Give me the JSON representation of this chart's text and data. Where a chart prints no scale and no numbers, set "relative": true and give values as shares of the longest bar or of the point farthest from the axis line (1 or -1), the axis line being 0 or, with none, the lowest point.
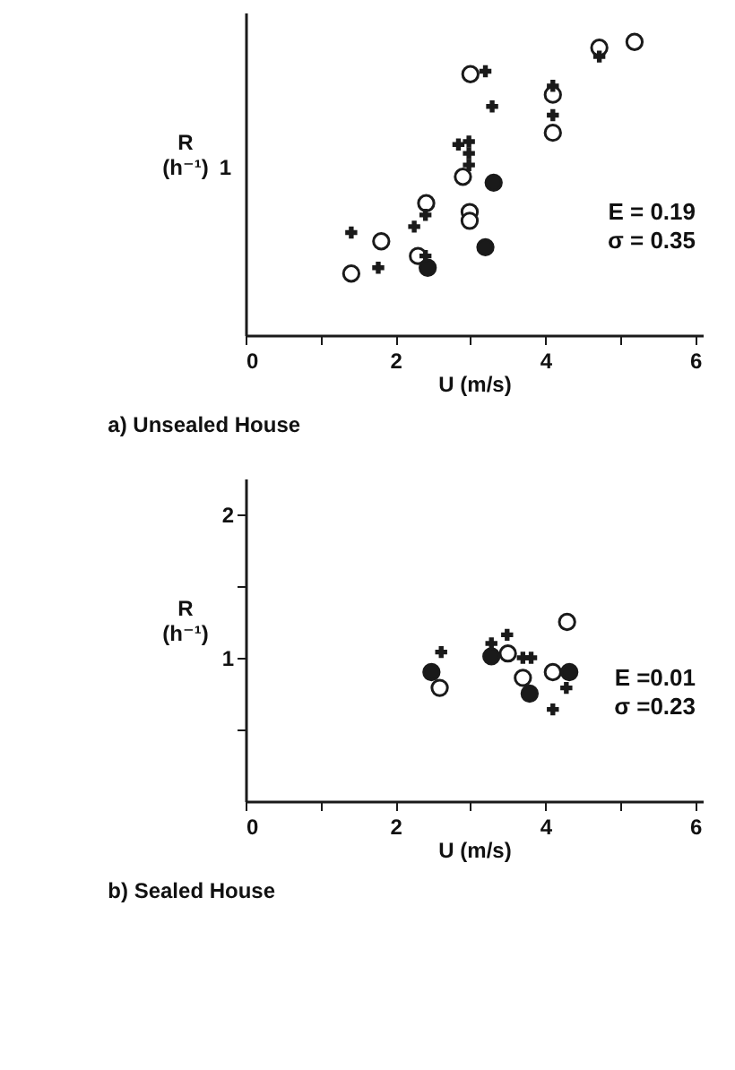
{
  "chart_data": [
    {
      "type": "scatter",
      "title": "a) Unsealed House",
      "xlabel": "U (m/s)",
      "ylabel": "R (h⁻¹)",
      "annotations": [
        "1",
        "E = 0.19",
        "σ = 0.35"
      ],
      "relative": true,
      "xlim": [
        0,
        6.1
      ],
      "xticks": [
        0,
        {
          "value": 1,
          "label": null
        },
        2,
        {
          "value": 3,
          "label": null
        },
        4,
        {
          "value": 5,
          "label": null
        },
        6
      ],
      "grid": false,
      "series": [
        {
          "color": "#ffffff",
          "marker": "circle",
          "x": [
            1.41,
            1.81,
            2.3,
            2.41,
            2.9,
            2.99,
            2.99,
            3.0,
            4.1,
            4.1,
            4.72,
            5.19
          ],
          "values": [
            0.21,
            0.32,
            0.27,
            0.45,
            0.54,
            0.42,
            0.39,
            0.89,
            0.82,
            0.69,
            0.98,
            1
          ]
        },
        {
          "color": "#1a1a1a",
          "marker": "circle",
          "x": [
            2.43,
            3.31,
            3.2
          ],
          "values": [
            0.23,
            0.52,
            0.3
          ]
        },
        {
          "color": "#1a1a1a",
          "marker": "cross",
          "x": [
            1.41,
            1.77,
            2.25,
            2.4,
            2.4,
            2.84,
            2.98,
            2.98,
            2.98,
            3.2,
            3.29,
            4.1,
            4.1,
            4.72
          ],
          "values": [
            0.35,
            0.23,
            0.37,
            0.41,
            0.27,
            0.65,
            0.66,
            0.62,
            0.58,
            0.9,
            0.78,
            0.75,
            0.85,
            0.95
          ]
        }
      ]
    },
    {
      "type": "scatter",
      "title": "b) Sealed House",
      "xlabel": "U (m/s)",
      "ylabel": "R (h⁻¹)",
      "annotations": [
        "E =0.01",
        "σ =0.23"
      ],
      "xlim": [
        0,
        6.1
      ],
      "ylim": [
        0,
        2.25
      ],
      "xticks": [
        0,
        {
          "value": 1,
          "label": null
        },
        2,
        {
          "value": 3,
          "label": null
        },
        4,
        {
          "value": 5,
          "label": null
        },
        6
      ],
      "yticks": [
        {
          "value": 0.5,
          "label": null
        },
        1,
        {
          "value": 1.5,
          "label": null
        },
        2
      ],
      "grid": false,
      "series": [
        {
          "color": "#ffffff",
          "marker": "circle",
          "x": [
            2.59,
            3.5,
            3.7,
            4.1,
            4.29
          ],
          "values": [
            0.79,
            1.03,
            0.86,
            0.9,
            1.25
          ]
        },
        {
          "color": "#1a1a1a",
          "marker": "circle",
          "x": [
            2.48,
            3.28,
            3.79,
            4.32
          ],
          "values": [
            0.9,
            1.01,
            0.75,
            0.9
          ]
        },
        {
          "color": "#1a1a1a",
          "marker": "cross",
          "x": [
            2.61,
            3.28,
            3.49,
            3.7,
            3.81,
            4.1,
            4.28
          ],
          "values": [
            1.04,
            1.1,
            1.16,
            1.0,
            1.0,
            0.64,
            0.79
          ]
        }
      ]
    }
  ]
}
